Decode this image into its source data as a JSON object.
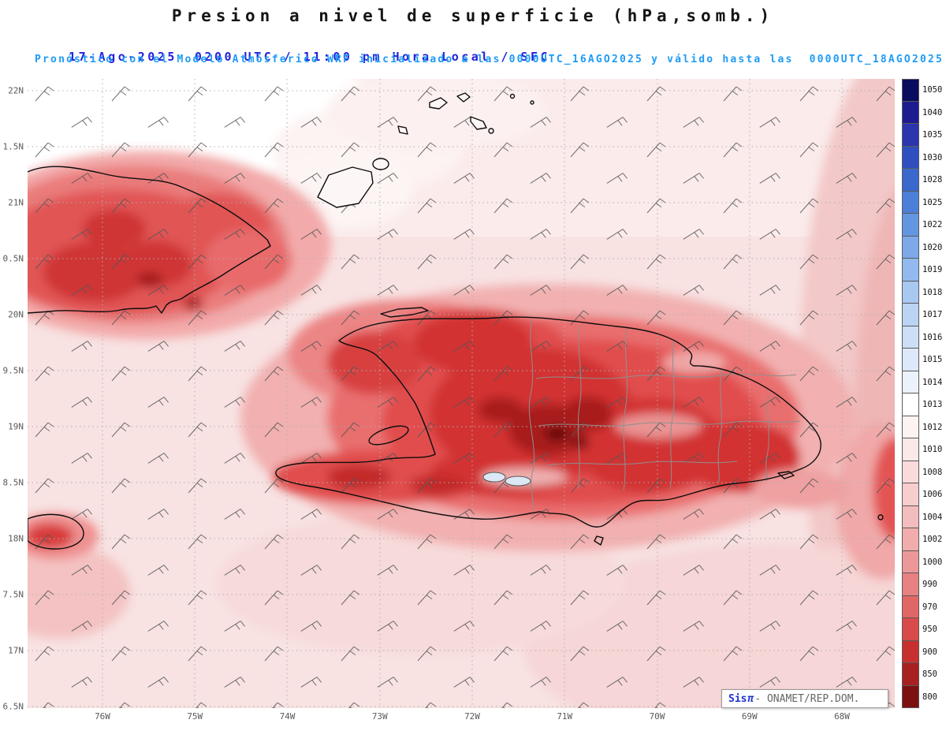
{
  "header": {
    "title": "Presion a nivel de superficie (hPa,somb.)",
    "date": "17-Ago-2025",
    "time": "0200 UTC / 11:00 pm Hora Local / SFC",
    "model_line": "Pronóstico con el Modelo Atmósferico WRF inicializado a las 0000UTC_16AGO2025 y válido hasta las  0000UTC_18AGO2025"
  },
  "map": {
    "field_unit": "hPa",
    "lat_labels": [
      "22N",
      "1.5N",
      "21N",
      "0.5N",
      "20N",
      "9.5N",
      "19N",
      "8.5N",
      "18N",
      "7.5N",
      "17N",
      "6.5N"
    ],
    "lon_labels": [
      "76W",
      "75W",
      "74W",
      "73W",
      "72W",
      "71W",
      "70W",
      "69W",
      "68W"
    ]
  },
  "colorbar": {
    "entries": [
      {
        "label": "1050",
        "color": "#0a0a5e"
      },
      {
        "label": "1040",
        "color": "#1c1c90"
      },
      {
        "label": "1035",
        "color": "#2a35ae"
      },
      {
        "label": "1030",
        "color": "#2f4fc0"
      },
      {
        "label": "1028",
        "color": "#3a68cc"
      },
      {
        "label": "1025",
        "color": "#4c80d8"
      },
      {
        "label": "1022",
        "color": "#6396e0"
      },
      {
        "label": "1020",
        "color": "#7da9e8"
      },
      {
        "label": "1019",
        "color": "#93baee"
      },
      {
        "label": "1018",
        "color": "#a8c8f1"
      },
      {
        "label": "1017",
        "color": "#bbd4f4"
      },
      {
        "label": "1016",
        "color": "#cddff7"
      },
      {
        "label": "1015",
        "color": "#dde9fa"
      },
      {
        "label": "1014",
        "color": "#ecf2fc"
      },
      {
        "label": "1013",
        "color": "#ffffff"
      },
      {
        "label": "1012",
        "color": "#fdf3f3"
      },
      {
        "label": "1010",
        "color": "#fbe8e8"
      },
      {
        "label": "1008",
        "color": "#f9dbdb"
      },
      {
        "label": "1006",
        "color": "#f7cdcd"
      },
      {
        "label": "1004",
        "color": "#f4bdbd"
      },
      {
        "label": "1002",
        "color": "#f1acac"
      },
      {
        "label": "1000",
        "color": "#ed9898"
      },
      {
        "label": "990",
        "color": "#e88181"
      },
      {
        "label": "970",
        "color": "#e16666"
      },
      {
        "label": "950",
        "color": "#d94b4b"
      },
      {
        "label": "900",
        "color": "#c83030"
      },
      {
        "label": "850",
        "color": "#a82020"
      },
      {
        "label": "800",
        "color": "#7c1010"
      }
    ]
  },
  "attribution": {
    "brand": "Sis",
    "pi": "π",
    "rest": "- ONAMET/REP.DOM."
  }
}
